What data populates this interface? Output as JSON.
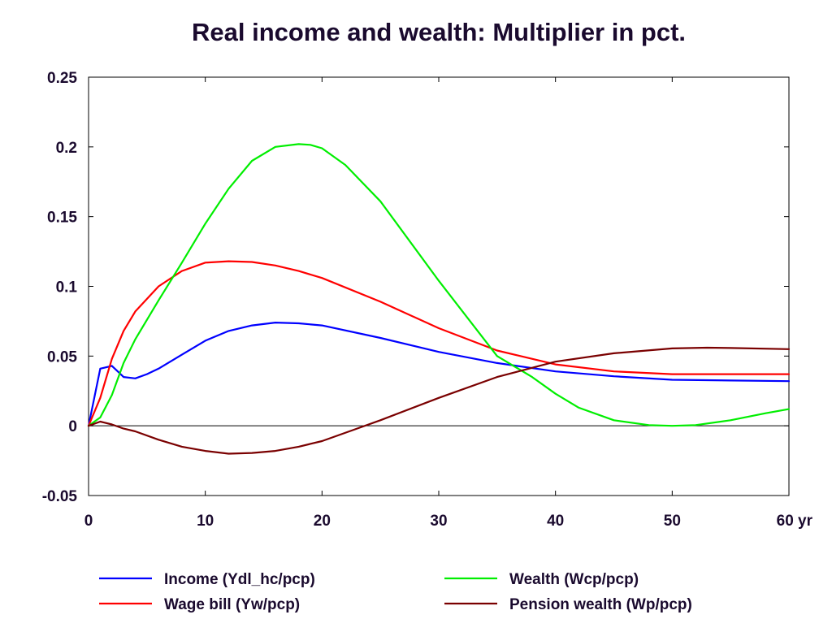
{
  "chart_data": {
    "type": "line",
    "title": "Real income and wealth: Multiplier in pct.",
    "x_unit_label": "yr",
    "xlim": [
      0,
      60
    ],
    "ylim": [
      -0.05,
      0.25
    ],
    "x_ticks": [
      0,
      10,
      20,
      30,
      40,
      50,
      60
    ],
    "x_tick_labels": [
      "0",
      "10",
      "20",
      "30",
      "40",
      "50",
      "60 yr"
    ],
    "y_ticks": [
      -0.05,
      0,
      0.05,
      0.1,
      0.15,
      0.2,
      0.25
    ],
    "y_tick_labels": [
      "-0.05",
      "0",
      "0.05",
      "0.1",
      "0.15",
      "0.2",
      "0.25"
    ],
    "zero_line": true,
    "grid": false,
    "legend_position": "bottom",
    "series": [
      {
        "name": "Income (Ydl_hc/pcp)",
        "color": "#0000ff",
        "x": [
          0,
          1,
          2,
          2.5,
          3,
          4,
          5,
          6,
          8,
          10,
          12,
          14,
          16,
          18,
          20,
          25,
          30,
          35,
          40,
          45,
          50,
          55,
          60
        ],
        "y": [
          0,
          0.041,
          0.043,
          0.039,
          0.035,
          0.034,
          0.037,
          0.041,
          0.051,
          0.061,
          0.068,
          0.072,
          0.074,
          0.0735,
          0.072,
          0.063,
          0.053,
          0.045,
          0.039,
          0.0355,
          0.033,
          0.0325,
          0.032
        ]
      },
      {
        "name": "Wage bill (Yw/pcp)",
        "color": "#ff0000",
        "x": [
          0,
          1,
          2,
          3,
          4,
          6,
          8,
          10,
          12,
          14,
          16,
          18,
          20,
          25,
          30,
          35,
          40,
          45,
          50,
          55,
          60
        ],
        "y": [
          0,
          0.02,
          0.048,
          0.068,
          0.082,
          0.1,
          0.111,
          0.117,
          0.118,
          0.1175,
          0.115,
          0.111,
          0.106,
          0.089,
          0.07,
          0.054,
          0.044,
          0.039,
          0.037,
          0.037,
          0.037
        ]
      },
      {
        "name": "Wealth (Wcp/pcp)",
        "color": "#00ee00",
        "x": [
          0,
          1,
          2,
          3,
          4,
          6,
          8,
          10,
          12,
          14,
          16,
          18,
          19,
          20,
          22,
          25,
          30,
          35,
          38,
          40,
          42,
          45,
          48,
          50,
          52,
          55,
          58,
          60
        ],
        "y": [
          0,
          0.006,
          0.022,
          0.045,
          0.062,
          0.09,
          0.117,
          0.145,
          0.17,
          0.19,
          0.2,
          0.202,
          0.2015,
          0.199,
          0.187,
          0.161,
          0.104,
          0.05,
          0.035,
          0.023,
          0.013,
          0.004,
          0.0005,
          0,
          0.0005,
          0.004,
          0.009,
          0.012
        ]
      },
      {
        "name": "Pension wealth (Wp/pcp)",
        "color": "#7a0000",
        "x": [
          0,
          1,
          2,
          3,
          4,
          6,
          8,
          10,
          12,
          14,
          16,
          18,
          20,
          23,
          25,
          30,
          35,
          40,
          45,
          50,
          53,
          55,
          60
        ],
        "y": [
          0,
          0.003,
          0.001,
          -0.002,
          -0.004,
          -0.01,
          -0.015,
          -0.018,
          -0.02,
          -0.0195,
          -0.018,
          -0.015,
          -0.011,
          -0.002,
          0.004,
          0.02,
          0.035,
          0.046,
          0.052,
          0.0555,
          0.056,
          0.0558,
          0.055
        ]
      }
    ]
  }
}
